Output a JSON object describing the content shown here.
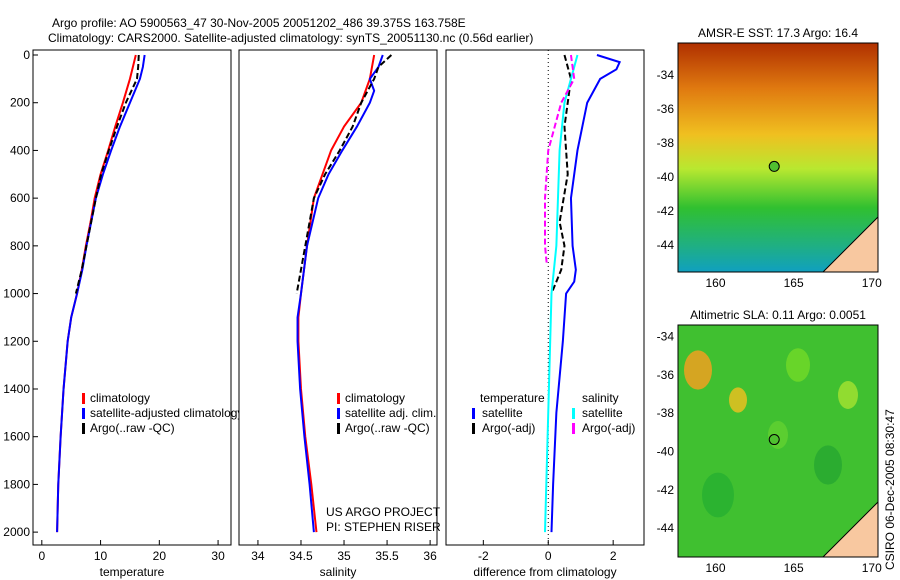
{
  "title_lines": [
    "Argo profile: AO 5900563_47 30-Nov-2005 20051202_486 39.375S 163.758E",
    "Climatology: CARS2000. Satellite-adjusted climatology: synTS_20051130.nc (0.56d earlier)"
  ],
  "credit": "CSIRO 06-Dec-2005 08:30:47",
  "project_lines": [
    "US ARGO PROJECT",
    "PI: STEPHEN RISER"
  ],
  "colors": {
    "climatology": "#ff0000",
    "satellite": "#0000ff",
    "argo": "#000000",
    "sal_satellite": "#00ffff",
    "sal_argo": "#ff00ff"
  },
  "chart_data": [
    {
      "type": "line",
      "xlabel": "temperature",
      "ylabel": "",
      "xlim": [
        -1.5,
        32.2
      ],
      "ylim": [
        2054,
        -21
      ],
      "xticks": [
        0,
        10,
        20,
        30
      ],
      "yticks": [
        0,
        200,
        400,
        600,
        800,
        1000,
        1200,
        1400,
        1600,
        1800,
        2000
      ],
      "legend": [
        "climatology",
        "satellite-adjusted climatology",
        "Argo(..raw -QC)"
      ],
      "series": [
        {
          "name": "climatology",
          "color": "#ff0000",
          "dash": false,
          "depth": [
            0,
            50,
            100,
            200,
            300,
            400,
            500,
            600,
            700,
            800,
            900,
            1000,
            1100,
            1200,
            1400,
            1600,
            1800,
            2000
          ],
          "values": [
            16,
            15.5,
            15,
            13.8,
            12.5,
            11.3,
            10,
            9,
            8.3,
            7.5,
            6.8,
            6,
            5,
            4.4,
            3.7,
            3.2,
            2.8,
            2.6
          ]
        },
        {
          "name": "satellite-adjusted climatology",
          "color": "#0000ff",
          "dash": false,
          "depth": [
            0,
            50,
            100,
            200,
            300,
            400,
            500,
            600,
            700,
            800,
            900,
            1000,
            1100,
            1200,
            1400,
            1600,
            1800,
            2000
          ],
          "values": [
            17.5,
            17.2,
            16.7,
            15,
            13.3,
            11.8,
            10.4,
            9.2,
            8.4,
            7.6,
            6.9,
            6,
            5,
            4.4,
            3.7,
            3.2,
            2.8,
            2.6
          ]
        },
        {
          "name": "Argo(..raw -QC)",
          "color": "#000000",
          "dash": true,
          "depth": [
            0,
            50,
            100,
            200,
            300,
            400,
            500,
            600,
            700,
            800,
            900,
            1000
          ],
          "values": [
            16.5,
            16.4,
            16.2,
            14.3,
            12.8,
            11.4,
            10.1,
            9.2,
            8.4,
            7.6,
            6.8,
            5.8
          ]
        }
      ]
    },
    {
      "type": "line",
      "xlabel": "salinity",
      "ylabel": "",
      "xlim": [
        33.78,
        36.08
      ],
      "ylim": [
        2054,
        -21
      ],
      "xticks": [
        34,
        34.5,
        35,
        35.5,
        36
      ],
      "legend": [
        "climatology",
        "satellite adj. clim.",
        "Argo(..raw -QC)"
      ],
      "series": [
        {
          "name": "climatology",
          "color": "#ff0000",
          "dash": false,
          "depth": [
            0,
            100,
            200,
            300,
            400,
            500,
            600,
            800,
            1000,
            1100,
            1200,
            1400,
            1600,
            1800,
            2000
          ],
          "values": [
            35.35,
            35.3,
            35.2,
            35.0,
            34.85,
            34.75,
            34.65,
            34.57,
            34.5,
            34.47,
            34.47,
            34.5,
            34.55,
            34.62,
            34.68
          ]
        },
        {
          "name": "satellite adj. clim.",
          "color": "#0000ff",
          "dash": false,
          "depth": [
            0,
            50,
            100,
            150,
            200,
            300,
            400,
            500,
            600,
            800,
            1000,
            1100,
            1200,
            1400,
            1600,
            1800,
            2000
          ],
          "values": [
            35.45,
            35.4,
            35.3,
            35.35,
            35.3,
            35.15,
            34.98,
            34.82,
            34.7,
            34.57,
            34.5,
            34.46,
            34.46,
            34.49,
            34.54,
            34.6,
            34.65
          ]
        },
        {
          "name": "Argo(..raw -QC)",
          "color": "#000000",
          "dash": true,
          "depth": [
            0,
            50,
            100,
            200,
            300,
            400,
            500,
            600,
            800,
            1000
          ],
          "values": [
            35.55,
            35.4,
            35.35,
            35.2,
            35.1,
            34.95,
            34.78,
            34.65,
            34.55,
            34.45
          ]
        }
      ]
    },
    {
      "type": "line",
      "xlabel": "difference from climatology",
      "ylabel": "",
      "xlim": [
        -3.15,
        2.95
      ],
      "ylim": [
        2054,
        -21
      ],
      "xticks": [
        -2,
        0,
        2
      ],
      "legend_headers": [
        "temperature",
        "salinity"
      ],
      "legend": [
        "satellite",
        "Argo(-adj)",
        "satellite",
        "Argo(-adj)"
      ],
      "series": [
        {
          "name": "temperature satellite",
          "color": "#0000ff",
          "dash": false,
          "depth": [
            0,
            30,
            60,
            100,
            200,
            300,
            400,
            600,
            800,
            900,
            950,
            1000,
            1200,
            1500,
            1800,
            2000
          ],
          "values": [
            1.5,
            2.2,
            2.1,
            1.6,
            1.2,
            1.05,
            0.9,
            0.7,
            0.75,
            0.85,
            0.8,
            0.55,
            0.45,
            0.25,
            0.15,
            0.1
          ]
        },
        {
          "name": "temperature Argo(-adj)",
          "color": "#000000",
          "dash": true,
          "depth": [
            0,
            100,
            300,
            500,
            700,
            800,
            900,
            1000
          ],
          "values": [
            0.5,
            0.7,
            0.5,
            0.6,
            0.35,
            0.5,
            0.4,
            0.1
          ]
        },
        {
          "name": "salinity satellite",
          "color": "#00ffff",
          "dash": false,
          "depth": [
            0,
            50,
            200,
            400,
            600,
            800,
            1000,
            1500,
            2000
          ],
          "values": [
            0.9,
            0.8,
            0.5,
            0.35,
            0.3,
            0.25,
            0.1,
            0,
            -0.1
          ]
        },
        {
          "name": "salinity Argo(-adj)",
          "color": "#ff00ff",
          "dash": true,
          "depth": [
            0,
            100,
            200,
            400,
            600,
            800,
            870
          ],
          "values": [
            0.7,
            0.8,
            0.4,
            0,
            -0.1,
            -0.1,
            -0.05
          ]
        }
      ]
    },
    {
      "type": "heatmap",
      "title": "AMSR-E SST: 17.3 Argo: 16.4",
      "xlim": [
        157.6,
        170.4
      ],
      "ylim": [
        -45.6,
        -32.1
      ],
      "xticks": [
        160,
        165,
        170
      ],
      "yticks": [
        -34,
        -36,
        -38,
        -40,
        -42,
        -44
      ],
      "marker": {
        "lon": 163.758,
        "lat": -39.375
      }
    },
    {
      "type": "heatmap",
      "title": "Altimetric SLA: 0.11 Argo: 0.0051",
      "xlim": [
        157.6,
        170.4
      ],
      "ylim": [
        -45.5,
        -33.4
      ],
      "xticks": [
        160,
        165,
        170
      ],
      "yticks": [
        -34,
        -36,
        -38,
        -40,
        -42,
        -44
      ],
      "marker": {
        "lon": 163.758,
        "lat": -39.375
      }
    }
  ]
}
